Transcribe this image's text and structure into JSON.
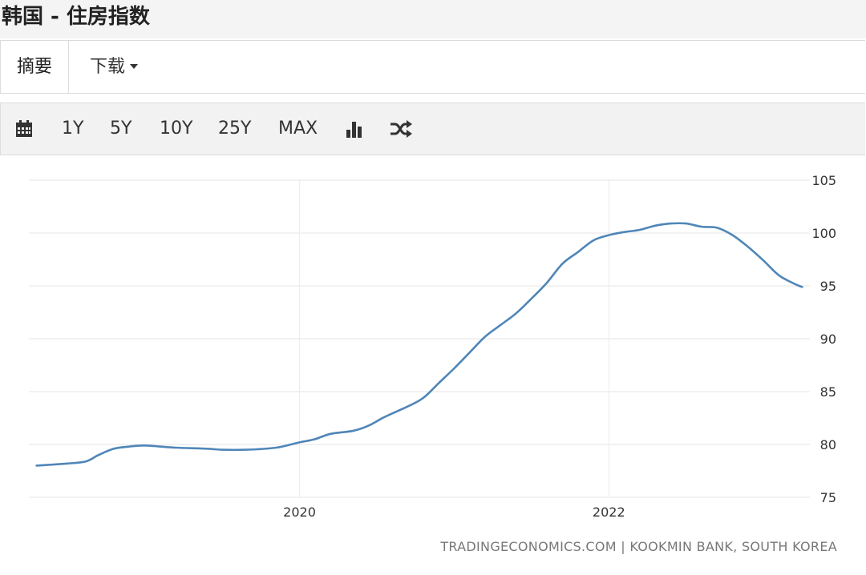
{
  "header": {
    "title": "韩国 - 住房指数"
  },
  "tabs": [
    {
      "label": "摘要"
    },
    {
      "label": "下载"
    }
  ],
  "toolbar": {
    "calendar_icon": "calendar-icon",
    "ranges": [
      "1Y",
      "5Y",
      "10Y",
      "25Y",
      "MAX"
    ],
    "chart_type_icon": "bar-chart-icon",
    "compare_icon": "shuffle-icon"
  },
  "chart_data": {
    "type": "line",
    "series": [
      {
        "color": "#4f86b8",
        "points": [
          [
            2018.3,
            78.0
          ],
          [
            2018.5,
            78.2
          ],
          [
            2018.62,
            78.4
          ],
          [
            2018.7,
            79.0
          ],
          [
            2018.8,
            79.6
          ],
          [
            2018.9,
            79.8
          ],
          [
            2019.0,
            79.9
          ],
          [
            2019.2,
            79.7
          ],
          [
            2019.4,
            79.6
          ],
          [
            2019.5,
            79.5
          ],
          [
            2019.65,
            79.5
          ],
          [
            2019.85,
            79.7
          ],
          [
            2020.0,
            80.2
          ],
          [
            2020.1,
            80.5
          ],
          [
            2020.2,
            81.0
          ],
          [
            2020.35,
            81.3
          ],
          [
            2020.45,
            81.8
          ],
          [
            2020.55,
            82.6
          ],
          [
            2020.7,
            83.6
          ],
          [
            2020.8,
            84.4
          ],
          [
            2020.9,
            85.8
          ],
          [
            2021.0,
            87.2
          ],
          [
            2021.1,
            88.7
          ],
          [
            2021.2,
            90.2
          ],
          [
            2021.3,
            91.3
          ],
          [
            2021.4,
            92.4
          ],
          [
            2021.5,
            93.8
          ],
          [
            2021.6,
            95.3
          ],
          [
            2021.7,
            97.1
          ],
          [
            2021.8,
            98.2
          ],
          [
            2021.9,
            99.3
          ],
          [
            2022.0,
            99.8
          ],
          [
            2022.1,
            100.1
          ],
          [
            2022.2,
            100.3
          ],
          [
            2022.3,
            100.7
          ],
          [
            2022.4,
            100.9
          ],
          [
            2022.5,
            100.9
          ],
          [
            2022.6,
            100.6
          ],
          [
            2022.7,
            100.5
          ],
          [
            2022.8,
            99.8
          ],
          [
            2022.9,
            98.7
          ],
          [
            2023.0,
            97.4
          ],
          [
            2023.1,
            96.0
          ],
          [
            2023.2,
            95.2
          ],
          [
            2023.25,
            94.9
          ]
        ]
      }
    ],
    "x_ticks": [
      "2020",
      "2022"
    ],
    "y_ticks": [
      "75",
      "80",
      "85",
      "90",
      "95",
      "100",
      "105"
    ],
    "xlim": [
      2018.25,
      2023.3
    ],
    "ylim": [
      75,
      105
    ],
    "grid": true,
    "y_axis_side": "right"
  },
  "source": "TRADINGECONOMICS.COM  |  KOOKMIN BANK, SOUTH KOREA"
}
